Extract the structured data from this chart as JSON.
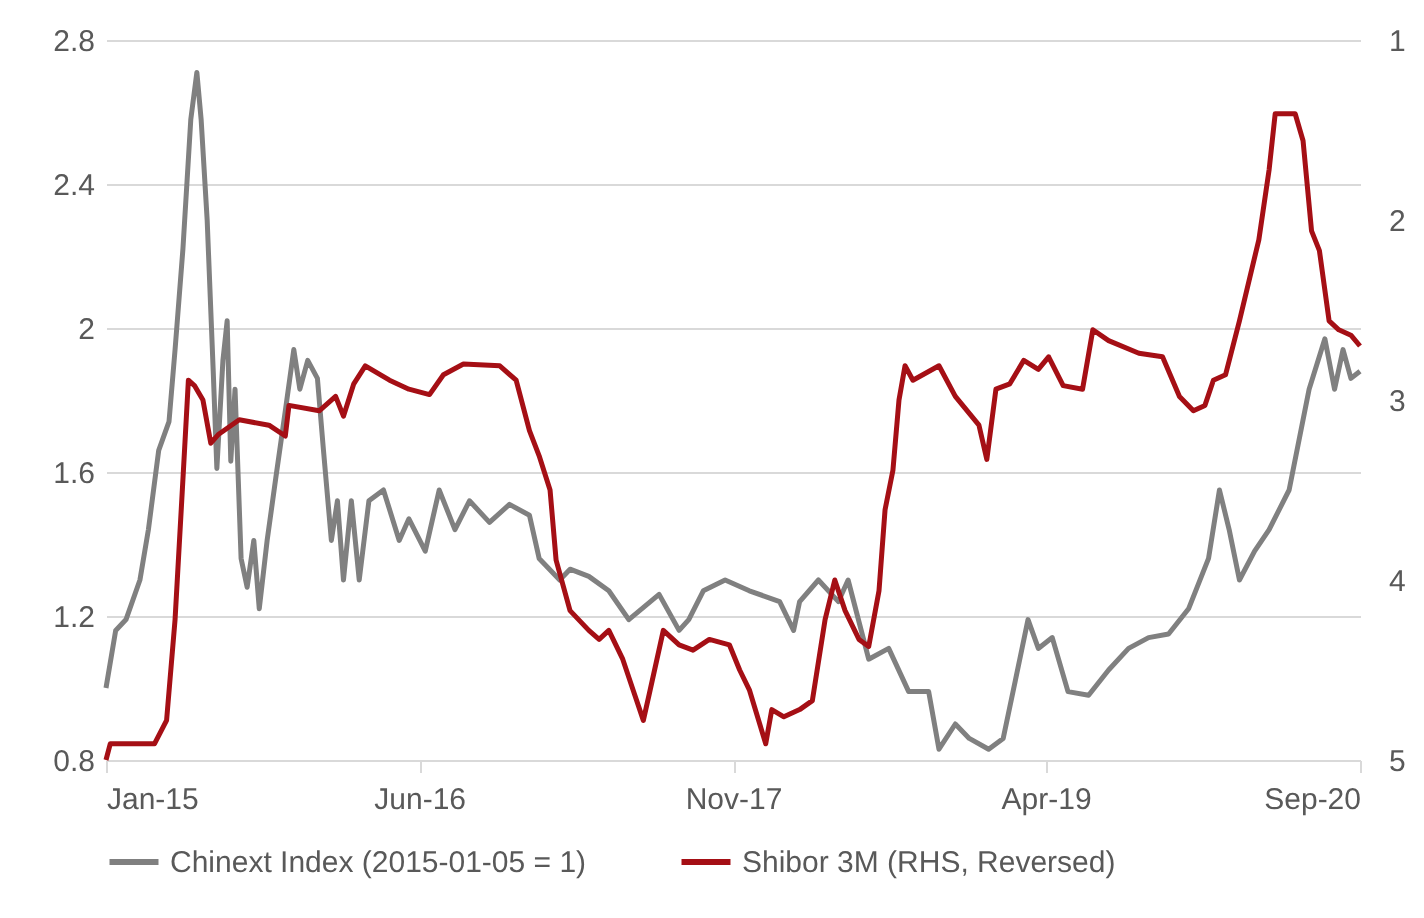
{
  "chart_data": {
    "type": "line",
    "legend": "bottom",
    "grid": "y",
    "xlim": [
      "2015-01-01",
      "2020-09-01"
    ],
    "xticks": [
      {
        "value": "2015-01-01",
        "label": "Jan-15"
      },
      {
        "value": "2016-06-01",
        "label": "Jun-16"
      },
      {
        "value": "2017-11-01",
        "label": "Nov-17"
      },
      {
        "value": "2019-04-01",
        "label": "Apr-19"
      },
      {
        "value": "2020-09-01",
        "label": "Sep-20"
      }
    ],
    "ylim": [
      0.8,
      2.8
    ],
    "yticks": [
      0.8,
      1.2,
      1.6,
      2,
      2.4,
      2.8
    ],
    "y2lim": [
      5,
      1
    ],
    "y2ticks": [
      1,
      2,
      3,
      4,
      5
    ],
    "series": [
      {
        "name": "Chinext Index (2015-01-05 = 1)",
        "color": "#808080",
        "x": [
          "2015-01-01",
          "2015-01-17",
          "2015-02-03",
          "2015-02-26",
          "2015-03-12",
          "2015-03-29",
          "2015-04-15",
          "2015-04-25",
          "2015-05-08",
          "2015-05-21",
          "2015-05-31",
          "2015-06-07",
          "2015-06-17",
          "2015-06-27",
          "2015-07-03",
          "2015-07-13",
          "2015-07-20",
          "2015-07-26",
          "2015-08-02",
          "2015-08-12",
          "2015-08-22",
          "2015-09-02",
          "2015-09-11",
          "2015-09-24",
          "2015-10-08",
          "2015-10-24",
          "2015-11-07",
          "2015-11-17",
          "2015-11-30",
          "2015-12-16",
          "2015-12-26",
          "2016-01-08",
          "2016-01-18",
          "2016-01-28",
          "2016-02-10",
          "2016-02-23",
          "2016-03-10",
          "2016-04-03",
          "2016-04-29",
          "2016-05-15",
          "2016-06-11",
          "2016-07-04",
          "2016-07-30",
          "2016-08-23",
          "2016-09-25",
          "2016-10-28",
          "2016-11-30",
          "2016-12-16",
          "2017-01-19",
          "2017-02-05",
          "2017-03-08",
          "2017-04-10",
          "2017-05-13",
          "2017-07-02",
          "2017-08-04",
          "2017-08-20",
          "2017-09-13",
          "2017-10-19",
          "2017-11-28",
          "2018-01-17",
          "2018-02-09",
          "2018-02-19",
          "2018-03-22",
          "2018-04-24",
          "2018-05-10",
          "2018-06-13",
          "2018-07-16",
          "2018-08-18",
          "2018-09-20",
          "2018-10-07",
          "2018-11-03",
          "2018-11-26",
          "2018-12-28",
          "2019-01-21",
          "2019-02-10",
          "2019-03-03",
          "2019-03-20",
          "2019-04-12",
          "2019-05-08",
          "2019-06-11",
          "2019-07-14",
          "2019-08-16",
          "2019-09-18",
          "2019-10-21",
          "2019-11-23",
          "2019-12-26",
          "2020-01-13",
          "2020-01-29",
          "2020-02-15",
          "2020-03-11",
          "2020-04-04",
          "2020-05-07",
          "2020-06-09",
          "2020-07-05",
          "2020-07-21",
          "2020-08-04",
          "2020-08-17",
          "2020-09-01"
        ],
        "values": [
          1.0,
          1.16,
          1.19,
          1.3,
          1.44,
          1.66,
          1.74,
          1.94,
          2.22,
          2.58,
          2.71,
          2.58,
          2.3,
          1.88,
          1.61,
          1.91,
          2.02,
          1.63,
          1.83,
          1.36,
          1.28,
          1.41,
          1.22,
          1.41,
          1.58,
          1.77,
          1.94,
          1.83,
          1.91,
          1.86,
          1.66,
          1.41,
          1.52,
          1.3,
          1.52,
          1.3,
          1.52,
          1.55,
          1.41,
          1.47,
          1.38,
          1.55,
          1.44,
          1.52,
          1.46,
          1.51,
          1.48,
          1.36,
          1.3,
          1.33,
          1.31,
          1.27,
          1.19,
          1.26,
          1.16,
          1.19,
          1.27,
          1.3,
          1.27,
          1.24,
          1.16,
          1.24,
          1.3,
          1.24,
          1.3,
          1.08,
          1.11,
          0.99,
          0.99,
          0.83,
          0.9,
          0.86,
          0.83,
          0.86,
          1.02,
          1.19,
          1.11,
          1.14,
          0.99,
          0.98,
          1.05,
          1.11,
          1.14,
          1.15,
          1.22,
          1.36,
          1.55,
          1.44,
          1.3,
          1.38,
          1.44,
          1.55,
          1.83,
          1.97,
          1.83,
          1.94,
          1.86,
          1.88
        ]
      },
      {
        "name": "Shibor 3M (RHS, Reversed)",
        "color": "#a50f15",
        "axis": "y2",
        "x": [
          "2015-01-01",
          "2015-01-08",
          "2015-03-22",
          "2015-04-11",
          "2015-04-25",
          "2015-05-08",
          "2015-05-17",
          "2015-05-27",
          "2015-06-10",
          "2015-06-23",
          "2015-07-06",
          "2015-08-09",
          "2015-09-27",
          "2015-10-24",
          "2015-10-30",
          "2015-12-19",
          "2016-01-15",
          "2016-01-28",
          "2016-02-14",
          "2016-03-04",
          "2016-04-13",
          "2016-05-15",
          "2016-06-18",
          "2016-07-11",
          "2016-08-13",
          "2016-10-12",
          "2016-11-08",
          "2016-11-30",
          "2016-12-16",
          "2017-01-03",
          "2017-01-13",
          "2017-02-05",
          "2017-03-08",
          "2017-03-25",
          "2017-04-10",
          "2017-05-03",
          "2017-05-23",
          "2017-06-06",
          "2017-06-16",
          "2017-07-09",
          "2017-08-04",
          "2017-08-27",
          "2017-09-23",
          "2017-10-26",
          "2017-11-12",
          "2017-11-28",
          "2017-12-25",
          "2018-01-04",
          "2018-01-24",
          "2018-02-19",
          "2018-03-12",
          "2018-04-02",
          "2018-04-18",
          "2018-05-05",
          "2018-05-28",
          "2018-06-13",
          "2018-06-30",
          "2018-07-10",
          "2018-07-23",
          "2018-08-02",
          "2018-08-12",
          "2018-08-25",
          "2018-10-07",
          "2018-11-03",
          "2018-12-12",
          "2018-12-25",
          "2019-01-09",
          "2019-02-01",
          "2019-02-24",
          "2019-03-20",
          "2019-04-06",
          "2019-04-30",
          "2019-06-01",
          "2019-06-18",
          "2019-07-14",
          "2019-09-02",
          "2019-10-11",
          "2019-11-08",
          "2019-12-01",
          "2019-12-20",
          "2020-01-03",
          "2020-01-23",
          "2020-02-15",
          "2020-03-18",
          "2020-04-04",
          "2020-04-14",
          "2020-05-17",
          "2020-05-30",
          "2020-06-13",
          "2020-06-26",
          "2020-07-12",
          "2020-07-28",
          "2020-08-17",
          "2020-09-01"
        ],
        "values": [
          5.0,
          4.91,
          4.91,
          4.78,
          4.22,
          3.44,
          2.89,
          2.92,
          3.0,
          3.24,
          3.19,
          3.11,
          3.14,
          3.2,
          3.03,
          3.06,
          2.98,
          3.09,
          2.91,
          2.81,
          2.89,
          2.94,
          2.97,
          2.86,
          2.8,
          2.81,
          2.89,
          3.17,
          3.31,
          3.5,
          3.89,
          4.17,
          4.28,
          4.33,
          4.28,
          4.44,
          4.64,
          4.78,
          4.63,
          4.28,
          4.36,
          4.39,
          4.33,
          4.36,
          4.5,
          4.61,
          4.91,
          4.72,
          4.76,
          4.72,
          4.67,
          4.22,
          4.0,
          4.17,
          4.33,
          4.37,
          4.06,
          3.61,
          3.39,
          3.0,
          2.81,
          2.89,
          2.81,
          2.98,
          3.14,
          3.33,
          2.94,
          2.91,
          2.78,
          2.83,
          2.76,
          2.92,
          2.94,
          2.61,
          2.67,
          2.74,
          2.76,
          2.98,
          3.06,
          3.03,
          2.89,
          2.86,
          2.56,
          2.11,
          1.72,
          1.41,
          1.41,
          1.56,
          2.06,
          2.17,
          2.56,
          2.61,
          2.64,
          2.7
        ]
      }
    ]
  }
}
